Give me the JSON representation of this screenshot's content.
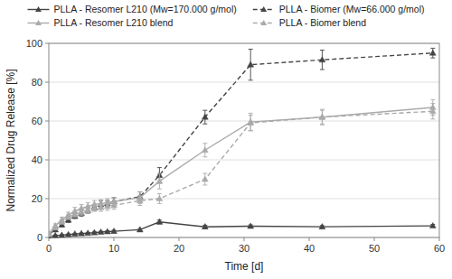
{
  "chart_data": {
    "type": "line",
    "xlabel": "Time [d]",
    "ylabel": "Normalized Drug Release [%]",
    "xlim": [
      0,
      60
    ],
    "ylim": [
      0,
      100
    ],
    "xticks": [
      0,
      10,
      20,
      30,
      40,
      50,
      60
    ],
    "yticks": [
      0,
      20,
      40,
      60,
      80,
      100
    ],
    "grid": "y",
    "legend": "top",
    "x": [
      0,
      1,
      2,
      3,
      4,
      5,
      6,
      7,
      8,
      9,
      10,
      14,
      17,
      24,
      31,
      42,
      59
    ],
    "series": [
      {
        "name": "PLLA - Resomer L210 (Mw=170.000 g/mol)",
        "color": "#444444",
        "line_style": "solid",
        "marker": "triangle",
        "values": [
          0.5,
          1.0,
          1.2,
          1.5,
          1.8,
          2.0,
          2.2,
          2.5,
          2.8,
          3.0,
          3.2,
          4.0,
          8.0,
          5.5,
          5.8,
          5.5,
          6.0
        ],
        "errors": [
          0.2,
          0.3,
          0.3,
          0.3,
          0.3,
          0.3,
          0.4,
          0.4,
          0.4,
          0.4,
          0.5,
          0.5,
          1.0,
          0.8,
          0.7,
          0.6,
          0.7
        ]
      },
      {
        "name": "PLLA - Biomer (Mw=66.000 g/mol)",
        "color": "#444444",
        "line_style": "dashed",
        "marker": "triangle",
        "values": [
          1.5,
          4.0,
          6.5,
          9.0,
          11.0,
          12.5,
          14.0,
          15.5,
          17.0,
          17.5,
          18.5,
          21.0,
          32.0,
          62.0,
          89.0,
          91.5,
          95.0
        ],
        "errors": [
          0.5,
          0.8,
          1.0,
          1.2,
          1.2,
          1.5,
          1.5,
          1.5,
          2.0,
          1.5,
          2.0,
          2.5,
          4.0,
          3.5,
          8.0,
          5.0,
          2.5
        ]
      },
      {
        "name": "PLLA - Resomer L210 blend",
        "color": "#aaaaaa",
        "line_style": "solid",
        "marker": "triangle",
        "values": [
          2.0,
          6.0,
          9.0,
          11.5,
          13.5,
          15.0,
          16.0,
          17.0,
          17.5,
          18.0,
          18.5,
          20.5,
          29.0,
          45.0,
          59.5,
          62.0,
          67.0
        ],
        "errors": [
          0.5,
          1.0,
          1.5,
          1.5,
          2.0,
          2.0,
          2.0,
          2.0,
          2.0,
          2.0,
          2.0,
          3.0,
          4.0,
          3.5,
          4.5,
          4.0,
          4.0
        ]
      },
      {
        "name": "PLLA - Biomer blend",
        "color": "#aaaaaa",
        "line_style": "dashed",
        "marker": "triangle",
        "values": [
          1.5,
          5.0,
          8.0,
          10.5,
          12.0,
          13.0,
          14.0,
          15.0,
          15.5,
          16.0,
          16.5,
          19.0,
          20.0,
          30.0,
          59.0,
          62.0,
          65.0
        ],
        "errors": [
          0.4,
          0.8,
          1.0,
          1.2,
          1.5,
          1.5,
          1.5,
          1.5,
          2.0,
          2.0,
          2.0,
          2.5,
          2.5,
          3.0,
          4.0,
          3.5,
          4.0
        ]
      }
    ]
  }
}
